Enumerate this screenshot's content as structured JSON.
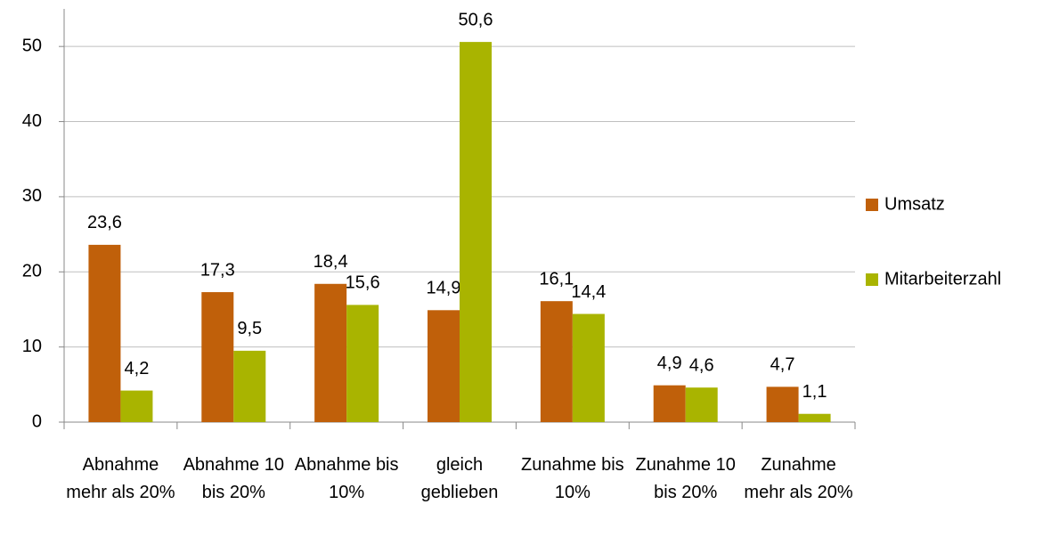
{
  "chart_data": {
    "type": "bar",
    "categories": [
      "Abnahme mehr als 20%",
      "Abnahme 10 bis 20%",
      "Abnahme bis 10%",
      "gleich geblieben",
      "Zunahme bis 10%",
      "Zunahme 10 bis 20%",
      "Zunahme mehr als 20%"
    ],
    "series": [
      {
        "name": "Umsatz",
        "color": "#c0600a",
        "values": [
          23.6,
          17.3,
          18.4,
          14.9,
          16.1,
          4.9,
          4.7
        ],
        "value_labels": [
          "23,6",
          "17,3",
          "18,4",
          "14,9",
          "16,1",
          "4,9",
          "4,7"
        ]
      },
      {
        "name": "Mitarbeiterzahl",
        "color": "#a9b400",
        "values": [
          4.2,
          9.5,
          15.6,
          50.6,
          14.4,
          4.6,
          1.1
        ],
        "value_labels": [
          "4,2",
          "9,5",
          "15,6",
          "50,6",
          "14,4",
          "4,6",
          "1,1"
        ]
      }
    ],
    "ylim": [
      0,
      55
    ],
    "yticks": [
      0,
      10,
      20,
      30,
      40,
      50
    ],
    "grid": true,
    "legend": "right"
  }
}
